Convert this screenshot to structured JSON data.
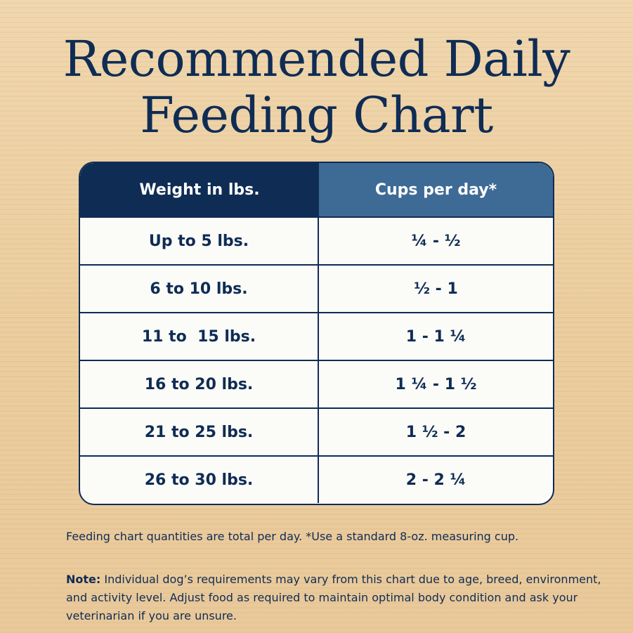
{
  "title": {
    "line1": "Recommended Daily",
    "line2": "Feeding Chart"
  },
  "table": {
    "headers": [
      "Weight in lbs.",
      "Cups per day*"
    ],
    "rows": [
      {
        "weight": "Up to 5 lbs.",
        "cups": "¼ - ½"
      },
      {
        "weight": "6 to 10 lbs.",
        "cups": "½ - 1"
      },
      {
        "weight": "11 to  15 lbs.",
        "cups": "1 - 1 ¼"
      },
      {
        "weight": "16 to 20 lbs.",
        "cups": "1 ¼ - 1 ½"
      },
      {
        "weight": "21 to 25 lbs.",
        "cups": "1 ½ - 2"
      },
      {
        "weight": "26 to 30 lbs.",
        "cups": "2 - 2 ¼"
      }
    ]
  },
  "footnote": "Feeding chart quantities are total per day. *Use a standard 8-oz. measuring cup.",
  "note": {
    "label": "Note:",
    "text": " Individual dog’s requirements may vary from this chart due to age, breed, environment, and activity level. Adjust food as required to maintain optimal body condition and ask your veterinarian if you are unsure."
  },
  "colors": {
    "navy": "#0f2c54",
    "header_secondary": "#3e6a96",
    "background": "#efd3a7"
  }
}
